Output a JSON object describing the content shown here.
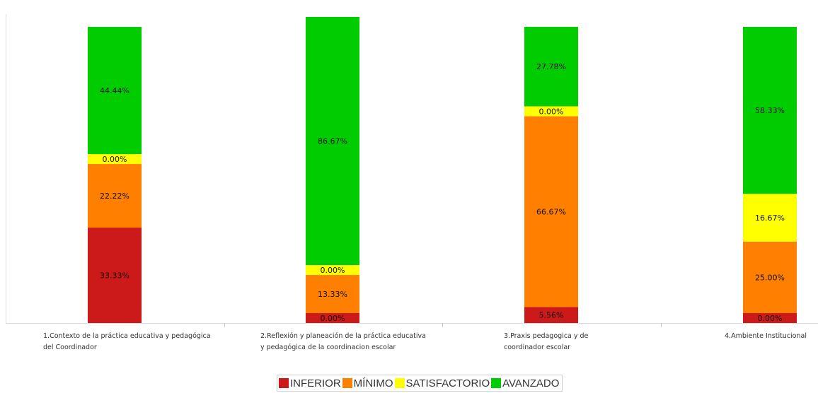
{
  "chart_data": {
    "type": "bar",
    "stacked": true,
    "percent_scale": true,
    "categories": [
      "1.Contexto de la práctica educativa y pedagógica del Coordinador",
      "2.Reflexión y planeación de la práctica educativa y pedagógica de la coordinacion escolar",
      "3.Praxis pedagogica y de coordinador escolar",
      "4.Ambiente Institucional"
    ],
    "series": [
      {
        "name": "INFERIOR",
        "color": "#cc1a1a",
        "values": [
          33.33,
          0.0,
          5.56,
          0.0
        ],
        "labels": [
          "33.33%",
          "0.00%",
          "5.56%",
          "0.00%"
        ]
      },
      {
        "name": "MÍNIMO",
        "color": "#ff8000",
        "values": [
          22.22,
          13.33,
          66.67,
          25.0
        ],
        "labels": [
          "22.22%",
          "13.33%",
          "66.67%",
          "25.00%"
        ]
      },
      {
        "name": "SATISFACTORIO",
        "color": "#ffff00",
        "values": [
          0.0,
          0.0,
          0.0,
          16.67
        ],
        "labels": [
          "0.00%",
          "0.00%",
          "0.00%",
          "16.67%"
        ]
      },
      {
        "name": "AVANZADO",
        "color": "#00cc00",
        "values": [
          44.44,
          86.67,
          27.78,
          58.33
        ],
        "labels": [
          "44.44%",
          "86.67%",
          "27.78%",
          "58.33%"
        ]
      }
    ],
    "legend_position": "bottom",
    "grid": false
  }
}
